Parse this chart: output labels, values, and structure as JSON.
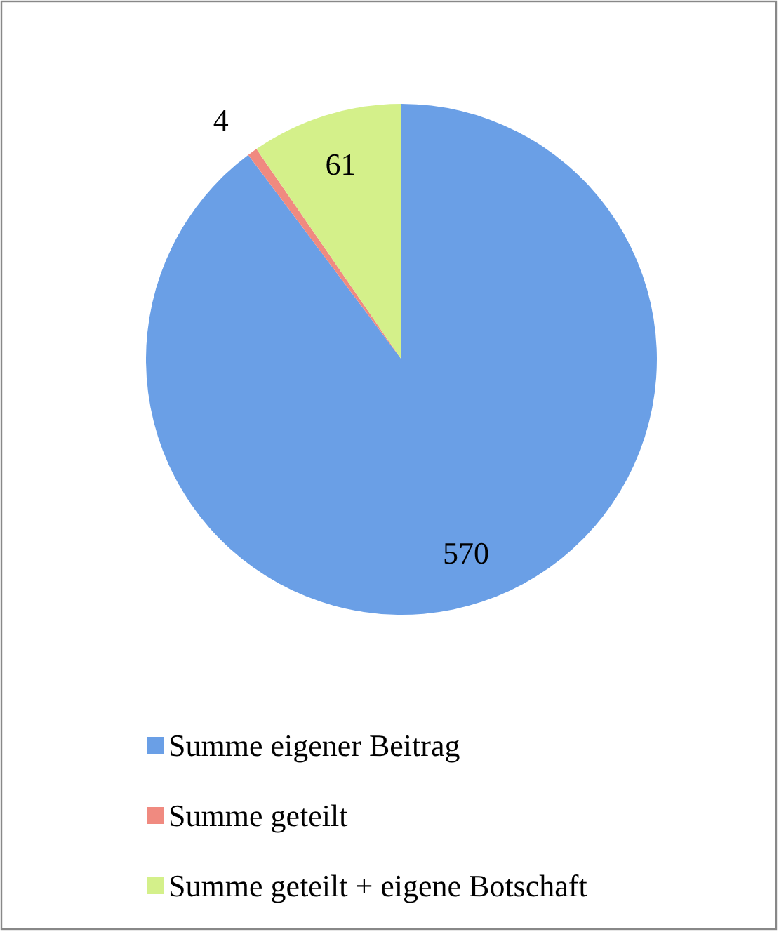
{
  "chart_data": {
    "type": "pie",
    "categories": [
      "Summe eigener Beitrag",
      "Summe geteilt",
      "Summe geteilt + eigene Botschaft"
    ],
    "values": [
      570,
      4,
      61
    ],
    "colors": [
      "#6a9fe6",
      "#f08a80",
      "#d4f08a"
    ],
    "data_labels": true,
    "legend": "bottom"
  }
}
